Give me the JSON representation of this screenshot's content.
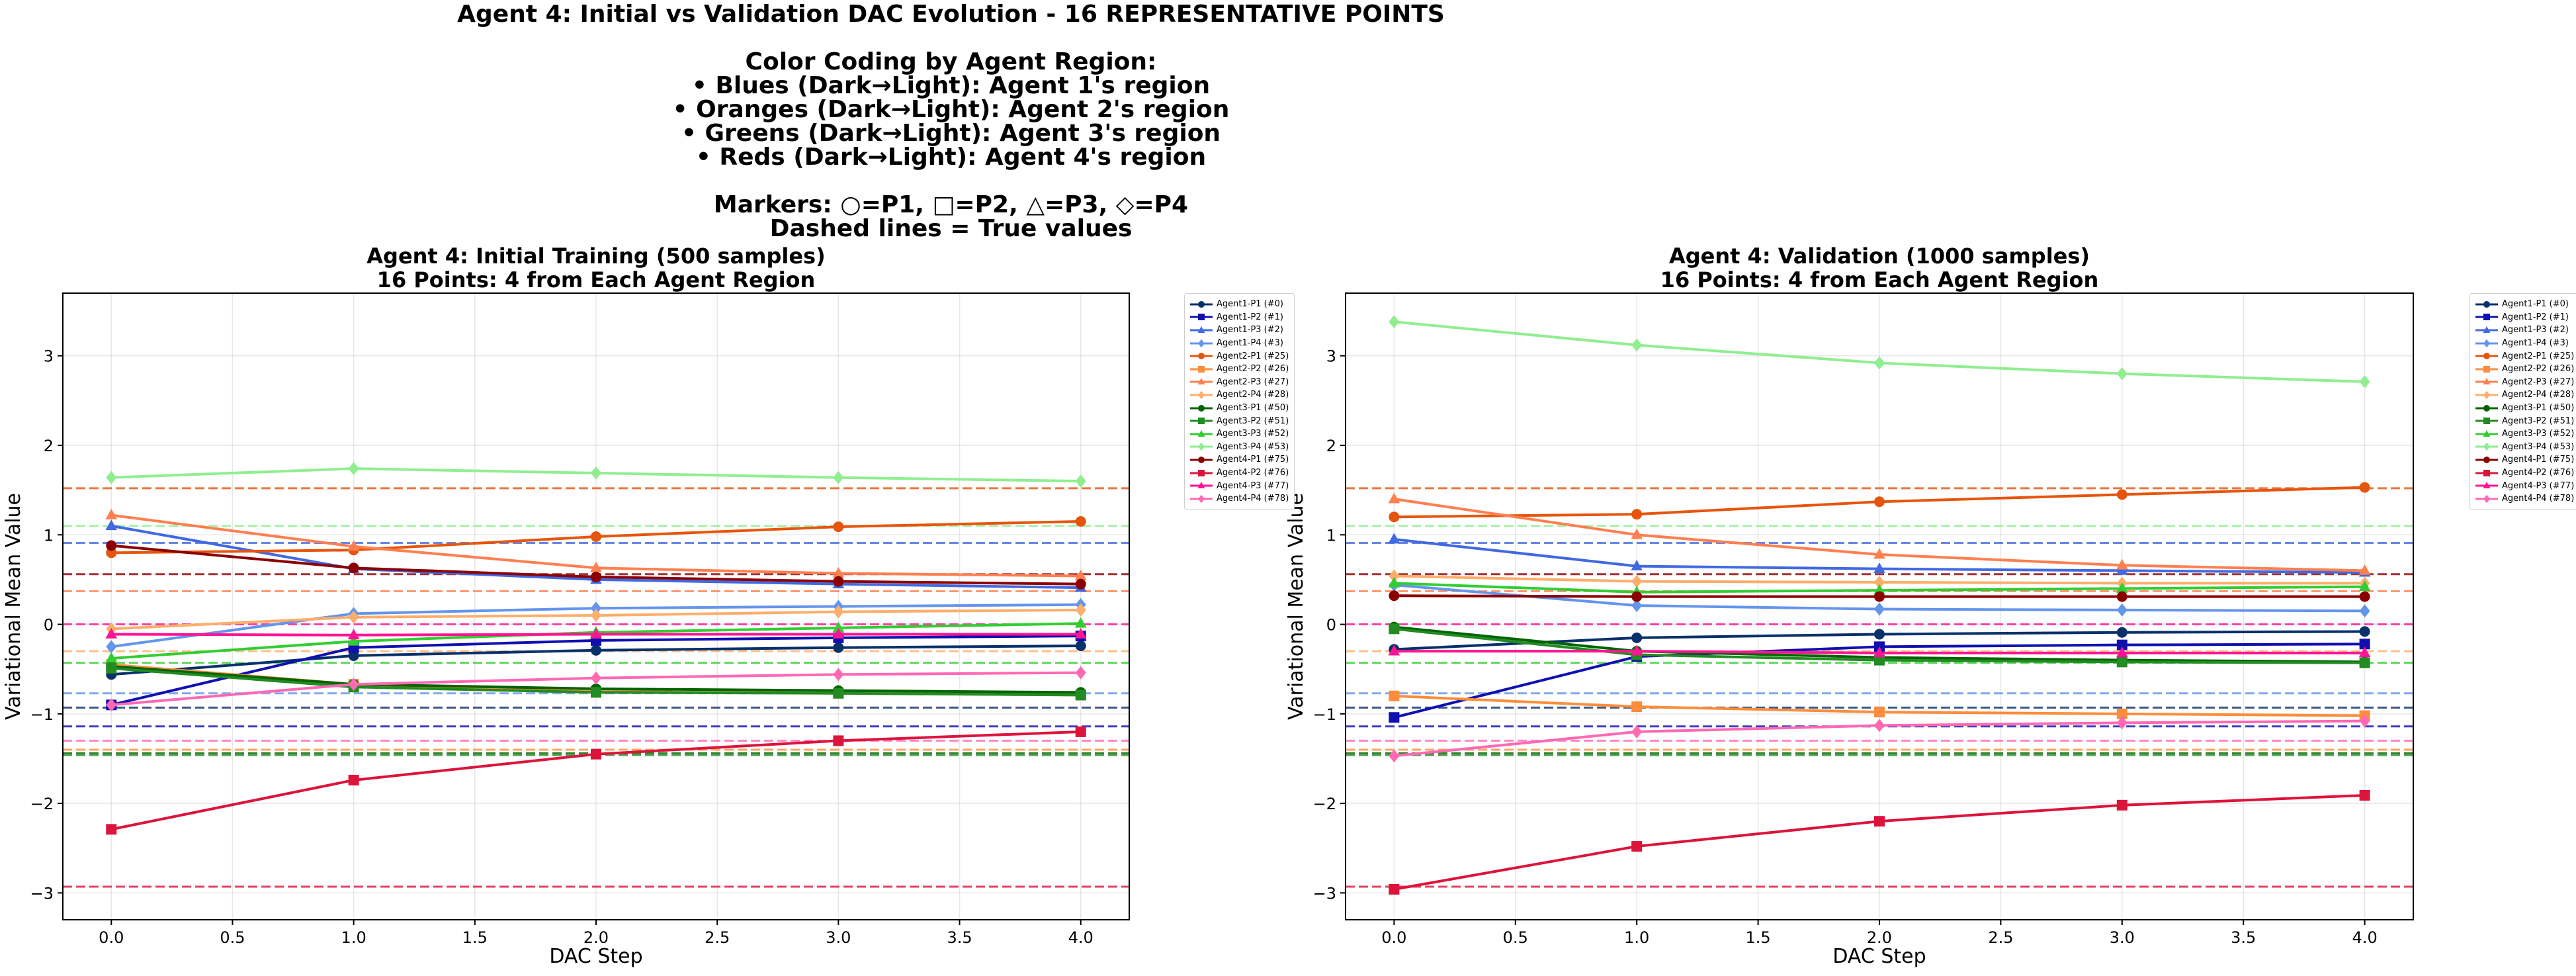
{
  "suptitle": {
    "lines": [
      "Agent 4: Initial vs Validation DAC Evolution - 16 REPRESENTATIVE POINTS",
      "",
      "Color Coding by Agent Region:",
      "• Blues (Dark→Light): Agent 1's region",
      "• Oranges (Dark→Light): Agent 2's region",
      "• Greens (Dark→Light): Agent 3's region",
      "• Reds (Dark→Light): Agent 4's region",
      "",
      "Markers: ○=P1, □=P2, △=P3, ◇=P4",
      "Dashed lines = True values"
    ]
  },
  "chart_data": [
    {
      "type": "line",
      "title_lines": [
        "Agent 4: Initial Training (500 samples)",
        "16 Points: 4 from Each Agent Region"
      ],
      "xlabel": "DAC Step",
      "ylabel": "Variational Mean Value",
      "xlim": [
        -0.2,
        4.2
      ],
      "ylim": [
        -3.3,
        3.7
      ],
      "xticks": [
        "0.0",
        "0.5",
        "1.0",
        "1.5",
        "2.0",
        "2.5",
        "3.0",
        "3.5",
        "4.0"
      ],
      "yticks": [
        "−3",
        "−2",
        "−1",
        "0",
        "1",
        "2",
        "3"
      ],
      "grid": true,
      "legend_position": "outside right",
      "x": [
        0,
        1,
        2,
        3,
        4
      ],
      "series": [
        {
          "name": "Agent1-P1 (#0)",
          "color": "#08306b",
          "marker": "circle",
          "values": [
            -0.56,
            -0.35,
            -0.29,
            -0.26,
            -0.24
          ],
          "true_value": -0.93
        },
        {
          "name": "Agent1-P2 (#1)",
          "color": "#1010b0",
          "marker": "square",
          "values": [
            -0.9,
            -0.26,
            -0.18,
            -0.15,
            -0.13
          ],
          "true_value": -1.14
        },
        {
          "name": "Agent1-P3 (#2)",
          "color": "#4169e1",
          "marker": "triangle",
          "values": [
            1.1,
            0.62,
            0.5,
            0.45,
            0.41
          ],
          "true_value": 0.91
        },
        {
          "name": "Agent1-P4 (#3)",
          "color": "#6495ed",
          "marker": "diamond",
          "values": [
            -0.25,
            0.12,
            0.18,
            0.2,
            0.22
          ],
          "true_value": -0.77
        },
        {
          "name": "Agent2-P1 (#25)",
          "color": "#e6550d",
          "marker": "circle",
          "values": [
            0.8,
            0.83,
            0.98,
            1.09,
            1.15
          ],
          "true_value": 1.52
        },
        {
          "name": "Agent2-P2 (#26)",
          "color": "#fd8d3c",
          "marker": "square",
          "values": [
            -0.45,
            -0.67,
            -0.75,
            -0.77,
            -0.79
          ],
          "true_value": -1.4
        },
        {
          "name": "Agent2-P3 (#27)",
          "color": "#ff7f50",
          "marker": "triangle",
          "values": [
            1.22,
            0.87,
            0.63,
            0.57,
            0.54
          ],
          "true_value": 0.37
        },
        {
          "name": "Agent2-P4 (#28)",
          "color": "#fdae6b",
          "marker": "diamond",
          "values": [
            -0.05,
            0.08,
            0.1,
            0.14,
            0.16
          ],
          "true_value": -0.3
        },
        {
          "name": "Agent3-P1 (#50)",
          "color": "#006400",
          "marker": "circle",
          "values": [
            -0.47,
            -0.67,
            -0.72,
            -0.74,
            -0.76
          ],
          "true_value": -1.44
        },
        {
          "name": "Agent3-P2 (#51)",
          "color": "#228b22",
          "marker": "square",
          "values": [
            -0.49,
            -0.7,
            -0.76,
            -0.77,
            -0.79
          ],
          "true_value": -1.46
        },
        {
          "name": "Agent3-P3 (#52)",
          "color": "#32cd32",
          "marker": "triangle",
          "values": [
            -0.38,
            -0.19,
            -0.09,
            -0.04,
            0.01
          ],
          "true_value": -0.43
        },
        {
          "name": "Agent3-P4 (#53)",
          "color": "#90ee90",
          "marker": "diamond",
          "values": [
            1.64,
            1.74,
            1.69,
            1.64,
            1.6
          ],
          "true_value": 1.1
        },
        {
          "name": "Agent4-P1 (#75)",
          "color": "#8b0000",
          "marker": "circle",
          "values": [
            0.88,
            0.63,
            0.53,
            0.48,
            0.45
          ],
          "true_value": 0.56
        },
        {
          "name": "Agent4-P2 (#76)",
          "color": "#dc143c",
          "marker": "square",
          "values": [
            -2.29,
            -1.74,
            -1.45,
            -1.3,
            -1.2
          ],
          "true_value": -2.93
        },
        {
          "name": "Agent4-P3 (#77)",
          "color": "#ff1493",
          "marker": "triangle",
          "values": [
            -0.11,
            -0.12,
            -0.11,
            -0.11,
            -0.11
          ],
          "true_value": 0.0
        },
        {
          "name": "Agent4-P4 (#78)",
          "color": "#ff69b4",
          "marker": "diamond",
          "values": [
            -0.9,
            -0.67,
            -0.6,
            -0.56,
            -0.54
          ],
          "true_value": -1.3
        }
      ]
    },
    {
      "type": "line",
      "title_lines": [
        "Agent 4: Validation (1000 samples)",
        "16 Points: 4 from Each Agent Region"
      ],
      "xlabel": "DAC Step",
      "ylabel": "Variational Mean Value",
      "xlim": [
        -0.2,
        4.2
      ],
      "ylim": [
        -3.3,
        3.7
      ],
      "xticks": [
        "0.0",
        "0.5",
        "1.0",
        "1.5",
        "2.0",
        "2.5",
        "3.0",
        "3.5",
        "4.0"
      ],
      "yticks": [
        "−3",
        "−2",
        "−1",
        "0",
        "1",
        "2",
        "3"
      ],
      "grid": true,
      "legend_position": "outside right",
      "x": [
        0,
        1,
        2,
        3,
        4
      ],
      "series": [
        {
          "name": "Agent1-P1 (#0)",
          "color": "#08306b",
          "marker": "circle",
          "values": [
            -0.28,
            -0.15,
            -0.11,
            -0.09,
            -0.08
          ],
          "true_value": -0.93
        },
        {
          "name": "Agent1-P2 (#1)",
          "color": "#1010b0",
          "marker": "square",
          "values": [
            -1.04,
            -0.36,
            -0.25,
            -0.23,
            -0.22
          ],
          "true_value": -1.14
        },
        {
          "name": "Agent1-P3 (#2)",
          "color": "#4169e1",
          "marker": "triangle",
          "values": [
            0.95,
            0.65,
            0.62,
            0.6,
            0.58
          ],
          "true_value": 0.91
        },
        {
          "name": "Agent1-P4 (#3)",
          "color": "#6495ed",
          "marker": "diamond",
          "values": [
            0.44,
            0.21,
            0.17,
            0.16,
            0.15
          ],
          "true_value": -0.77
        },
        {
          "name": "Agent2-P1 (#25)",
          "color": "#e6550d",
          "marker": "circle",
          "values": [
            1.2,
            1.23,
            1.37,
            1.45,
            1.53
          ],
          "true_value": 1.52
        },
        {
          "name": "Agent2-P2 (#26)",
          "color": "#fd8d3c",
          "marker": "square",
          "values": [
            -0.8,
            -0.92,
            -0.98,
            -1.0,
            -1.02
          ],
          "true_value": -1.4
        },
        {
          "name": "Agent2-P3 (#27)",
          "color": "#ff7f50",
          "marker": "triangle",
          "values": [
            1.4,
            1.0,
            0.78,
            0.66,
            0.6
          ],
          "true_value": 0.37
        },
        {
          "name": "Agent2-P4 (#28)",
          "color": "#fdae6b",
          "marker": "diamond",
          "values": [
            0.54,
            0.48,
            0.47,
            0.46,
            0.46
          ],
          "true_value": -0.3
        },
        {
          "name": "Agent3-P1 (#50)",
          "color": "#006400",
          "marker": "circle",
          "values": [
            -0.03,
            -0.3,
            -0.37,
            -0.4,
            -0.42
          ],
          "true_value": -1.44
        },
        {
          "name": "Agent3-P2 (#51)",
          "color": "#228b22",
          "marker": "square",
          "values": [
            -0.05,
            -0.34,
            -0.4,
            -0.42,
            -0.43
          ],
          "true_value": -1.46
        },
        {
          "name": "Agent3-P3 (#52)",
          "color": "#32cd32",
          "marker": "triangle",
          "values": [
            0.46,
            0.36,
            0.38,
            0.4,
            0.42
          ],
          "true_value": -0.43
        },
        {
          "name": "Agent3-P4 (#53)",
          "color": "#90ee90",
          "marker": "diamond",
          "values": [
            3.38,
            3.12,
            2.92,
            2.8,
            2.71
          ],
          "true_value": 1.1
        },
        {
          "name": "Agent4-P1 (#75)",
          "color": "#8b0000",
          "marker": "circle",
          "values": [
            0.32,
            0.31,
            0.31,
            0.31,
            0.31
          ],
          "true_value": 0.56
        },
        {
          "name": "Agent4-P2 (#76)",
          "color": "#dc143c",
          "marker": "square",
          "values": [
            -2.96,
            -2.48,
            -2.2,
            -2.02,
            -1.91
          ],
          "true_value": -2.93
        },
        {
          "name": "Agent4-P3 (#77)",
          "color": "#ff1493",
          "marker": "triangle",
          "values": [
            -0.3,
            -0.3,
            -0.32,
            -0.32,
            -0.32
          ],
          "true_value": 0.0
        },
        {
          "name": "Agent4-P4 (#78)",
          "color": "#ff69b4",
          "marker": "diamond",
          "values": [
            -1.47,
            -1.2,
            -1.13,
            -1.1,
            -1.08
          ],
          "true_value": -1.3
        }
      ]
    }
  ]
}
